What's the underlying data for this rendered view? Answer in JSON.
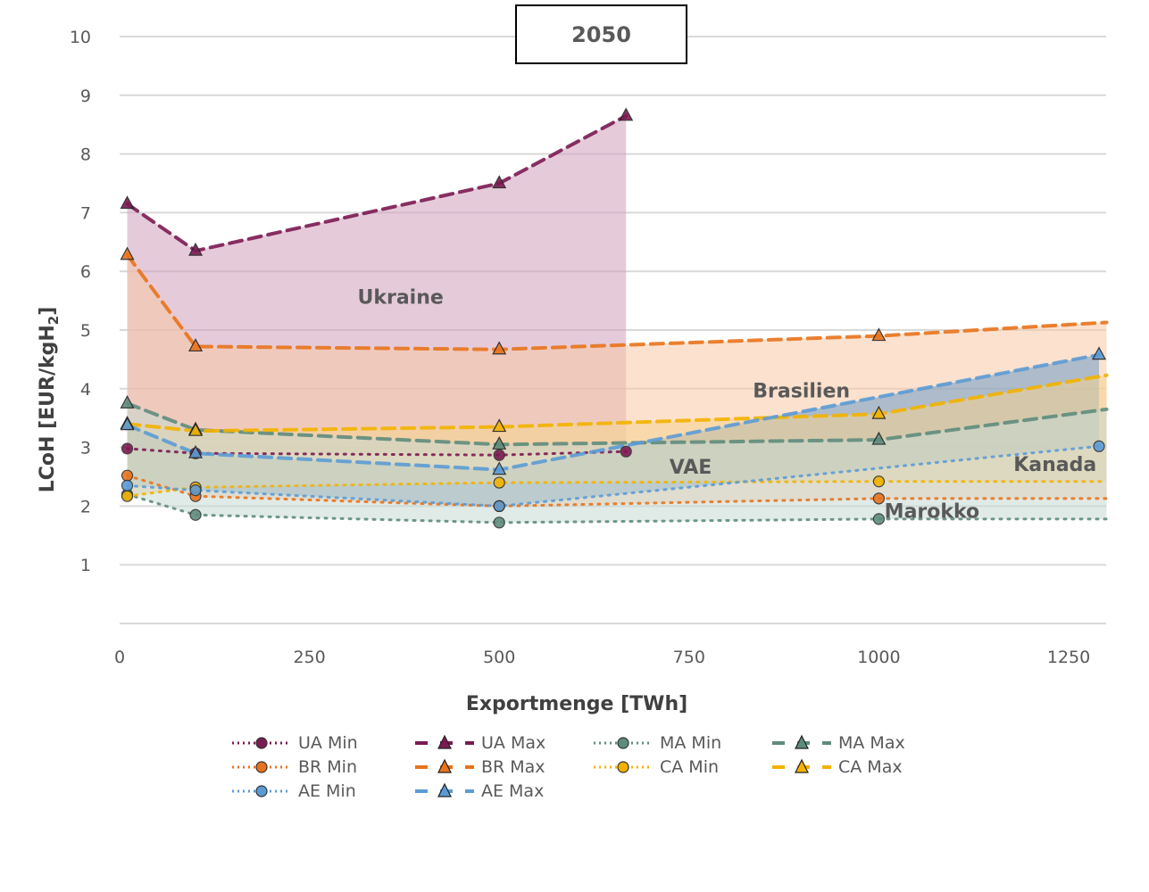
{
  "chart_data": {
    "type": "area",
    "title": "2050",
    "xlabel": "Exportmenge [TWh]",
    "ylabel": "LCoH [EUR/kgH2]",
    "xlim": [
      0,
      1300
    ],
    "ylim": [
      0,
      10
    ],
    "xticks": [
      0,
      250,
      500,
      750,
      1000,
      1250
    ],
    "yticks": [
      1,
      2,
      3,
      4,
      5,
      6,
      7,
      8,
      9,
      10
    ],
    "grid": true,
    "legend_position": "bottom",
    "colors": {
      "UA": "#7b1a52",
      "BR": "#e8731c",
      "AE": "#5b9bd5",
      "MA": "#5e8c7c",
      "CA": "#f2b200"
    },
    "bands": [
      {
        "name": "Ukraine",
        "min": "UA Min",
        "max": "UA Max",
        "fill": "#cfa0bb",
        "label_at": [
          370,
          5.45
        ]
      },
      {
        "name": "Brasilien",
        "min": "BR Min",
        "max": "BR Max",
        "fill": "#f9c9a6",
        "label_at": [
          898,
          3.85
        ]
      },
      {
        "name": "VAE",
        "min": "AE Min",
        "max": "AE Max",
        "fill": "#6d9dc7",
        "label_at": [
          752,
          2.55
        ]
      },
      {
        "name": "Kanada",
        "min": "CA Min",
        "max": "CA Max",
        "fill": "#f5d38f",
        "label_at": [
          1232,
          2.6
        ]
      },
      {
        "name": "Marokko",
        "min": "MA Min",
        "max": "MA Max",
        "fill": "#c7d8d1",
        "label_at": [
          1070,
          1.8
        ]
      }
    ],
    "series": [
      {
        "name": "UA Min",
        "group": "UA",
        "kind": "min",
        "x": [
          10,
          100,
          500,
          667
        ],
        "y": [
          2.98,
          2.9,
          2.87,
          2.93
        ]
      },
      {
        "name": "UA Max",
        "group": "UA",
        "kind": "max",
        "x": [
          10,
          100,
          500,
          667
        ],
        "y": [
          7.15,
          6.35,
          7.5,
          8.65
        ]
      },
      {
        "name": "MA Min",
        "group": "MA",
        "kind": "min",
        "x": [
          10,
          100,
          500,
          1000,
          1300
        ],
        "y": [
          2.2,
          1.85,
          1.72,
          1.78,
          1.78
        ]
      },
      {
        "name": "MA Max",
        "group": "MA",
        "kind": "max",
        "x": [
          10,
          100,
          500,
          1000,
          1300
        ],
        "y": [
          3.75,
          3.3,
          3.05,
          3.13,
          3.65
        ]
      },
      {
        "name": "BR Min",
        "group": "BR",
        "kind": "min",
        "x": [
          10,
          100,
          500,
          1000,
          1300
        ],
        "y": [
          2.52,
          2.17,
          2.0,
          2.13,
          2.13
        ]
      },
      {
        "name": "BR Max",
        "group": "BR",
        "kind": "max",
        "x": [
          10,
          100,
          500,
          1000,
          1300
        ],
        "y": [
          6.28,
          4.72,
          4.67,
          4.9,
          5.13
        ]
      },
      {
        "name": "CA Min",
        "group": "CA",
        "kind": "min",
        "x": [
          10,
          100,
          500,
          1000,
          1300
        ],
        "y": [
          2.17,
          2.32,
          2.4,
          2.42,
          2.42
        ]
      },
      {
        "name": "CA Max",
        "group": "CA",
        "kind": "max",
        "x": [
          10,
          100,
          500,
          1000,
          1300
        ],
        "y": [
          3.4,
          3.28,
          3.35,
          3.57,
          4.23
        ]
      },
      {
        "name": "AE Min",
        "group": "AE",
        "kind": "min",
        "x": [
          10,
          100,
          500,
          1290
        ],
        "y": [
          2.35,
          2.27,
          2.0,
          3.02
        ]
      },
      {
        "name": "AE Max",
        "group": "AE",
        "kind": "max",
        "x": [
          10,
          100,
          500,
          1290
        ],
        "y": [
          3.38,
          2.9,
          2.62,
          4.58
        ]
      }
    ],
    "legend": [
      {
        "label": "UA Min",
        "group": "UA",
        "kind": "min"
      },
      {
        "label": "UA Max",
        "group": "UA",
        "kind": "max"
      },
      {
        "label": "MA Min",
        "group": "MA",
        "kind": "min"
      },
      {
        "label": "MA Max",
        "group": "MA",
        "kind": "max"
      },
      {
        "label": "BR Min",
        "group": "BR",
        "kind": "min"
      },
      {
        "label": "BR Max",
        "group": "BR",
        "kind": "max"
      },
      {
        "label": "CA Min",
        "group": "CA",
        "kind": "min"
      },
      {
        "label": "CA Max",
        "group": "CA",
        "kind": "max"
      },
      {
        "label": "AE Min",
        "group": "AE",
        "kind": "min"
      },
      {
        "label": "AE Max",
        "group": "AE",
        "kind": "max"
      }
    ]
  }
}
